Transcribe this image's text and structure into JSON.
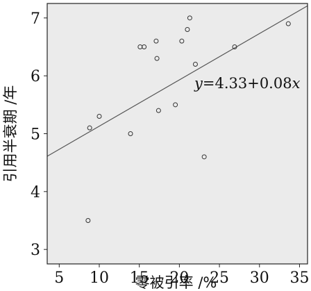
{
  "chart_data": {
    "type": "scatter",
    "xlabel": "零被引率 /%",
    "ylabel": "引用半衰期 /年",
    "xlim": [
      3.5,
      36
    ],
    "ylim": [
      2.75,
      7.25
    ],
    "x_ticks": [
      5,
      10,
      15,
      20,
      25,
      30,
      35
    ],
    "y_ticks": [
      3,
      4,
      5,
      6,
      7
    ],
    "grid": false,
    "background": "#ebebeb",
    "points": [
      {
        "x": 8.6,
        "y": 3.5
      },
      {
        "x": 8.8,
        "y": 5.1
      },
      {
        "x": 10.0,
        "y": 5.3
      },
      {
        "x": 13.9,
        "y": 5.0
      },
      {
        "x": 15.1,
        "y": 6.5
      },
      {
        "x": 15.6,
        "y": 6.5
      },
      {
        "x": 17.1,
        "y": 6.6
      },
      {
        "x": 17.2,
        "y": 6.3
      },
      {
        "x": 17.4,
        "y": 5.4
      },
      {
        "x": 19.5,
        "y": 5.5
      },
      {
        "x": 20.3,
        "y": 6.6
      },
      {
        "x": 21.0,
        "y": 6.8
      },
      {
        "x": 21.3,
        "y": 7.0
      },
      {
        "x": 22.0,
        "y": 6.2
      },
      {
        "x": 23.1,
        "y": 4.6
      },
      {
        "x": 26.9,
        "y": 6.5
      },
      {
        "x": 33.6,
        "y": 6.9
      }
    ],
    "fit_line": {
      "intercept": 4.33,
      "slope": 0.08
    },
    "annotation": "y=4.33+0.08x"
  }
}
